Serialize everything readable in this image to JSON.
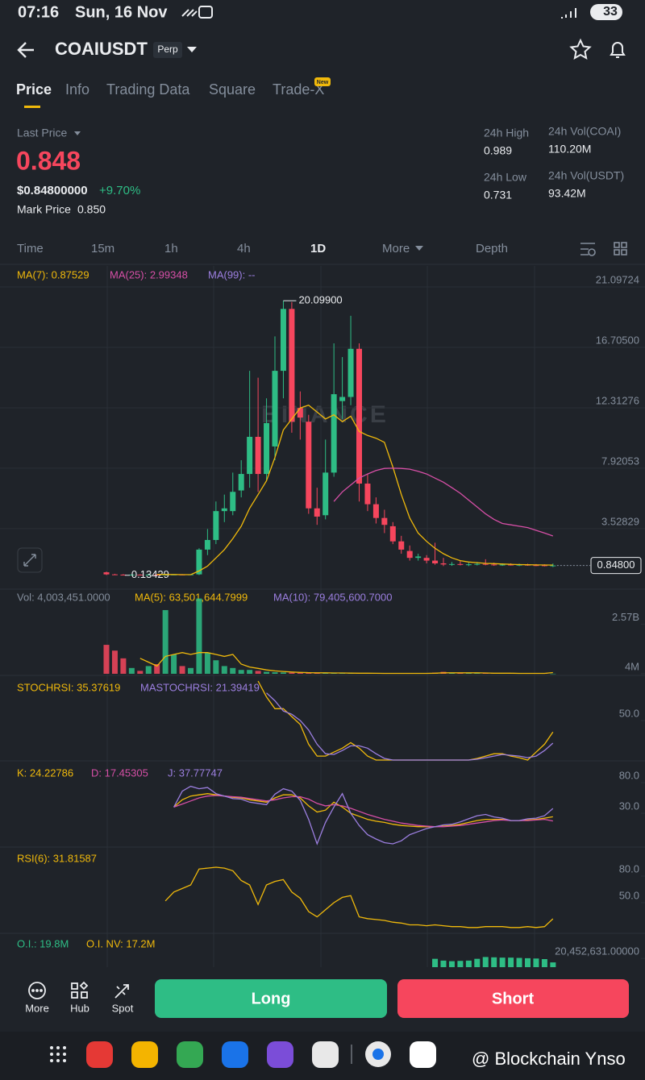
{
  "status_bar": {
    "time": "07:16",
    "date": "Sun, 16 Nov",
    "battery": "33"
  },
  "header": {
    "symbol": "COAIUSDT",
    "contract": "Perp"
  },
  "tabs": [
    "Price",
    "Info",
    "Trading Data",
    "Square",
    "Trade-X"
  ],
  "tab_badge": "New",
  "ticker": {
    "last_price_label": "Last Price",
    "last_price": "0.848",
    "usd_price": "$0.84800000",
    "change": "+9.70%",
    "mark_price_label": "Mark Price",
    "mark_price": "0.850"
  },
  "stats": [
    {
      "label": "24h High",
      "value": "0.989"
    },
    {
      "label": "24h Low",
      "value": "0.731"
    },
    {
      "label": "24h Vol(COAI)",
      "value": "110.20M"
    },
    {
      "label": "24h Vol(USDT)",
      "value": "93.42M"
    }
  ],
  "intervals": [
    "Time",
    "15m",
    "1h",
    "4h",
    "1D",
    "More",
    "Depth"
  ],
  "chart_watermark": "BINANCE",
  "chart_data": [
    {
      "type": "candlestick",
      "legend": [
        {
          "text": "MA(7): 0.87529",
          "color": "#f0b90b"
        },
        {
          "text": "MA(25): 2.99348",
          "color": "#d64fa6"
        },
        {
          "text": "MA(99): --",
          "color": "#9c7fe0"
        }
      ],
      "up_color": "#2ebd85",
      "down_color": "#f6465d",
      "open": [
        0.35,
        0.2,
        0.18,
        0.17,
        0.18,
        0.17,
        0.18,
        0.17,
        0.18,
        0.19,
        0.18,
        0.2,
        2.0,
        2.7,
        4.8,
        4.8,
        6.3,
        7.5,
        10.2,
        7.5,
        9.5,
        15,
        19.5,
        12.3,
        11.3,
        5.0,
        4.5,
        7.6,
        12.8,
        13.1,
        16.6,
        6.8,
        5.3,
        4.3,
        3.7,
        2.6,
        1.9,
        1.4,
        1.4,
        1.2,
        1.0,
        0.92,
        0.95,
        0.9,
        0.93,
        0.96,
        0.92,
        0.9,
        0.91,
        0.88,
        0.9,
        0.87,
        0.86,
        0.84
      ],
      "high": [
        0.4,
        0.24,
        0.22,
        0.2,
        0.21,
        0.2,
        0.21,
        0.2,
        0.21,
        0.22,
        0.21,
        2.1,
        3.5,
        5.5,
        6.0,
        7.6,
        8.5,
        15,
        14.5,
        13,
        17.5,
        20.099,
        20.0,
        13.5,
        11.8,
        6.5,
        10,
        17,
        16,
        19,
        17,
        7.5,
        5.8,
        4.9,
        4.0,
        3.0,
        2.3,
        1.7,
        1.6,
        2.5,
        1.4,
        1.1,
        1.2,
        1.05,
        1.1,
        1.3,
        1.05,
        1.0,
        1.0,
        0.98,
        0.97,
        0.95,
        0.93,
        0.99
      ],
      "low": [
        0.15,
        0.16,
        0.13429,
        0.15,
        0.15,
        0.15,
        0.15,
        0.15,
        0.16,
        0.16,
        0.16,
        0.15,
        1.6,
        2.4,
        4.0,
        4.5,
        5.8,
        6.5,
        6.2,
        7,
        8.5,
        13,
        10.5,
        10,
        4.6,
        3.8,
        4.2,
        7.3,
        11.5,
        12.5,
        5.5,
        4.8,
        3.9,
        3.2,
        2.4,
        1.7,
        1.2,
        1.2,
        1.0,
        0.9,
        0.8,
        0.82,
        0.85,
        0.8,
        0.85,
        0.86,
        0.82,
        0.82,
        0.84,
        0.8,
        0.82,
        0.8,
        0.78,
        0.73
      ],
      "close": [
        0.2,
        0.18,
        0.17,
        0.18,
        0.17,
        0.18,
        0.17,
        0.18,
        0.19,
        0.18,
        0.2,
        2.0,
        2.7,
        4.8,
        5.0,
        6.2,
        7.5,
        10.2,
        7.5,
        11.2,
        15.0,
        19.5,
        11.3,
        11.6,
        5.0,
        4.4,
        7.6,
        13.3,
        13.1,
        16.6,
        6.8,
        5.3,
        4.3,
        3.8,
        2.6,
        2.0,
        1.4,
        1.5,
        1.2,
        1.0,
        0.92,
        0.95,
        0.9,
        0.93,
        0.96,
        0.92,
        0.9,
        0.91,
        0.88,
        0.9,
        0.87,
        0.86,
        0.84,
        0.848
      ],
      "series": [
        {
          "color": "#f0b90b",
          "values": [
            null,
            null,
            null,
            null,
            null,
            null,
            0.2,
            0.19,
            0.19,
            0.18,
            0.18,
            0.45,
            0.8,
            1.4,
            2.0,
            2.8,
            3.7,
            5.0,
            6.0,
            7.0,
            8.7,
            10.7,
            11.5,
            12.3,
            12.5,
            12.0,
            11.5,
            11.8,
            11.3,
            11.7,
            10.6,
            10.3,
            10.1,
            9.8,
            8.0,
            6.0,
            4.3,
            3.2,
            2.6,
            2.1,
            1.7,
            1.4,
            1.2,
            1.1,
            1.05,
            1.0,
            0.98,
            0.95,
            0.93,
            0.91,
            0.9,
            0.89,
            0.88,
            0.87529
          ]
        },
        {
          "color": "#d64fa6",
          "values": [
            null,
            null,
            null,
            null,
            null,
            null,
            null,
            null,
            null,
            null,
            null,
            null,
            null,
            null,
            null,
            null,
            null,
            null,
            null,
            null,
            null,
            null,
            null,
            null,
            null,
            null,
            null,
            5.5,
            6.2,
            6.7,
            7.2,
            7.5,
            7.75,
            7.9,
            7.92,
            7.9,
            7.85,
            7.7,
            7.5,
            7.2,
            6.9,
            6.5,
            6.1,
            5.6,
            5.1,
            4.6,
            4.2,
            3.9,
            3.8,
            3.7,
            3.6,
            3.4,
            3.2,
            2.99348
          ]
        }
      ],
      "ylim": [
        -0.7,
        22.33
      ],
      "yticks": [
        21.09724,
        {
          "value": 16.705,
          "label": "16.70500"
        },
        12.31276,
        7.92053,
        3.52829
      ],
      "grid": true,
      "high_label": {
        "value": 20.099,
        "label": "20.09900"
      },
      "low_label": 0.13429,
      "last_price_marker": {
        "value": 0.848,
        "label": "0.84800"
      }
    },
    {
      "type": "bar",
      "legend": [
        {
          "text": "Vol: 4,003,451.0000",
          "color": "#848e9c"
        },
        {
          "text": "MA(5): 63,501,644.7999",
          "color": "#f0b90b"
        },
        {
          "text": "MA(10): 79,405,600.7000",
          "color": "#9c7fe0"
        }
      ],
      "values": [
        1500000000.0,
        1200000000.0,
        800000000.0,
        300000000.0,
        150000000.0,
        400000000.0,
        500000000.0,
        3300000000.0,
        1000000000.0,
        400000000.0,
        300000000.0,
        3900000000.0,
        1100000000.0,
        700000000.0,
        400000000.0,
        300000000.0,
        200000000.0,
        200000000.0,
        150000000.0,
        100000000.0,
        80000000.0,
        70000000.0,
        60000000.0,
        50000000.0,
        50000000.0,
        40000000.0,
        40000000.0,
        40000000.0,
        30000000.0,
        30000000.0,
        30000000.0,
        20000000.0,
        20000000.0,
        20000000.0,
        20000000.0,
        20000000.0,
        20000000.0,
        20000000.0,
        30000000.0,
        60000000.0,
        100000000.0,
        50000000.0,
        40000000.0,
        30000000.0,
        30000000.0,
        30000000.0,
        30000000.0,
        20000000.0,
        20000000.0,
        20000000.0,
        20000000.0,
        20000000.0,
        20000000.0,
        4003451
      ],
      "series": [
        {
          "color": "#f0b90b",
          "values": [
            null,
            null,
            null,
            null,
            800000000.0,
            600000000.0,
            400000000.0,
            900000000.0,
            1000000000.0,
            1100000000.0,
            1000000000.0,
            1100000000.0,
            1100000000.0,
            1000000000.0,
            900000000.0,
            1000000000.0,
            500000000.0,
            350000000.0,
            280000000.0,
            200000000.0,
            150000000.0,
            120000000.0,
            90000000.0,
            70000000.0,
            60000000.0,
            50000000.0,
            50000000.0,
            40000000.0,
            40000000.0,
            35000000.0,
            30000000.0,
            30000000.0,
            25000000.0,
            20000000.0,
            20000000.0,
            20000000.0,
            20000000.0,
            20000000.0,
            20000000.0,
            30000000.0,
            50000000.0,
            50000000.0,
            50000000.0,
            50000000.0,
            50000000.0,
            40000000.0,
            30000000.0,
            30000000.0,
            30000000.0,
            20000000.0,
            20000000.0,
            20000000.0,
            20000000.0,
            63501644.7999
          ]
        }
      ],
      "ylim": [
        0,
        4300000000
      ],
      "yticks": [
        {
          "value": 2570000000,
          "label": "2.57B"
        },
        {
          "value": 4000000,
          "label": "4M"
        }
      ]
    },
    {
      "type": "line",
      "legend": [
        {
          "text": "STOCHRSI: 35.37619",
          "color": "#f0b90b"
        },
        {
          "text": "MASTOCHRSI: 21.39419",
          "color": "#9c7fe0"
        }
      ],
      "series": [
        {
          "color": "#f0b90b",
          "values": [
            null,
            null,
            null,
            null,
            null,
            null,
            null,
            null,
            null,
            null,
            null,
            null,
            null,
            null,
            null,
            null,
            null,
            null,
            100,
            80,
            65,
            65,
            55,
            45,
            20,
            5,
            5,
            10,
            15,
            22,
            15,
            5,
            0,
            0,
            0,
            0,
            0,
            0,
            0,
            0,
            0,
            0,
            0,
            0,
            2,
            5,
            8,
            8,
            5,
            3,
            0,
            10,
            20,
            35.37619
          ]
        },
        {
          "color": "#9c7fe0",
          "values": [
            null,
            null,
            null,
            null,
            null,
            null,
            null,
            null,
            null,
            null,
            null,
            null,
            null,
            null,
            null,
            null,
            null,
            null,
            null,
            85,
            75,
            62,
            58,
            50,
            38,
            20,
            8,
            7,
            12,
            18,
            18,
            15,
            8,
            2,
            0,
            0,
            0,
            0,
            0,
            0,
            0,
            0,
            0,
            0,
            1,
            3,
            5,
            7,
            6,
            5,
            3,
            5,
            12,
            21.39419
          ]
        }
      ],
      "ylim": [
        0,
        100
      ],
      "yticks": [
        {
          "value": 50,
          "label": "50.0"
        }
      ]
    },
    {
      "type": "line",
      "legend": [
        {
          "text": "K: 24.22786",
          "color": "#f0b90b"
        },
        {
          "text": "D: 17.45305",
          "color": "#d64fa6"
        },
        {
          "text": "J: 37.77747",
          "color": "#9c7fe0"
        }
      ],
      "series": [
        {
          "color": "#f0b90b",
          "values": [
            null,
            null,
            null,
            null,
            null,
            null,
            null,
            null,
            40,
            52,
            58,
            60,
            62,
            60,
            58,
            56,
            55,
            52,
            50,
            48,
            55,
            60,
            60,
            55,
            42,
            32,
            35,
            48,
            40,
            30,
            25,
            20,
            17,
            15,
            12,
            10,
            9,
            8,
            8,
            8,
            9,
            10,
            12,
            15,
            18,
            20,
            20,
            20,
            18,
            18,
            19,
            20,
            22,
            24.22786
          ]
        },
        {
          "color": "#d64fa6",
          "values": [
            null,
            null,
            null,
            null,
            null,
            null,
            null,
            null,
            40,
            45,
            50,
            55,
            58,
            59,
            58,
            57,
            56,
            54,
            52,
            50,
            52,
            55,
            57,
            57,
            53,
            46,
            42,
            44,
            42,
            38,
            33,
            28,
            24,
            20,
            17,
            14,
            12,
            10,
            9,
            8,
            8,
            9,
            10,
            12,
            14,
            16,
            18,
            19,
            18,
            18,
            18,
            19,
            20,
            17.45305
          ]
        },
        {
          "color": "#9c7fe0",
          "values": [
            null,
            null,
            null,
            null,
            null,
            null,
            null,
            null,
            40,
            66,
            74,
            70,
            72,
            62,
            58,
            54,
            53,
            48,
            46,
            44,
            61,
            70,
            66,
            51,
            20,
            -20,
            15,
            40,
            62,
            30,
            10,
            -5,
            -12,
            -18,
            -20,
            -15,
            -5,
            0,
            5,
            8,
            11,
            12,
            16,
            21,
            26,
            28,
            24,
            22,
            18,
            18,
            21,
            22,
            26,
            37.77747
          ]
        }
      ],
      "ylim": [
        -23.9,
        107.6
      ],
      "yticks": [
        {
          "value": 80,
          "label": "80.0"
        },
        {
          "value": 30,
          "label": "30.0"
        }
      ]
    },
    {
      "type": "line",
      "legend": [
        {
          "text": "RSI(6): 31.81587",
          "color": "#f0b90b"
        }
      ],
      "series": [
        {
          "color": "#f0b90b",
          "values": [
            null,
            null,
            null,
            null,
            null,
            null,
            null,
            52,
            62,
            66,
            70,
            88,
            89,
            90,
            89,
            86,
            75,
            70,
            48,
            70,
            74,
            76,
            62,
            55,
            40,
            34,
            42,
            50,
            56,
            58,
            34,
            32,
            31,
            30,
            28,
            27,
            25,
            25,
            24,
            25,
            24,
            23,
            23,
            22,
            22,
            23,
            23,
            23,
            22,
            22,
            23,
            22,
            23,
            31.81587
          ]
        }
      ],
      "ylim": [
        13.6,
        107.3
      ],
      "yticks": [
        {
          "value": 80,
          "label": "80.0"
        },
        {
          "value": 50,
          "label": "50.0"
        }
      ]
    },
    {
      "type": "bar",
      "legend": [
        {
          "text": "O.I.: 19.8M",
          "color": "#2ebd85"
        },
        {
          "text": "O.I. NV: 17.2M",
          "color": "#f0b90b"
        }
      ],
      "color": "#2ebd85",
      "values": [
        null,
        null,
        null,
        null,
        null,
        null,
        null,
        null,
        null,
        null,
        null,
        null,
        null,
        null,
        null,
        null,
        null,
        null,
        null,
        null,
        null,
        null,
        null,
        null,
        null,
        null,
        null,
        null,
        null,
        null,
        null,
        null,
        null,
        null,
        null,
        null,
        null,
        null,
        null,
        20400000,
        20100000,
        20000000,
        20050000,
        20100000,
        20400000,
        20700000,
        20650000,
        20600000,
        20600000,
        20550000,
        20500000,
        20450000,
        20350000,
        19800000
      ],
      "ylim": [
        19000000,
        24000000
      ],
      "yticks": [
        {
          "value": 20452631,
          "label": "20,452,631.00000"
        }
      ]
    }
  ],
  "toolbar": [
    "More",
    "Hub",
    "Spot"
  ],
  "long": "Long",
  "short": "Short",
  "watermark": "@ Blockchain Ynso"
}
